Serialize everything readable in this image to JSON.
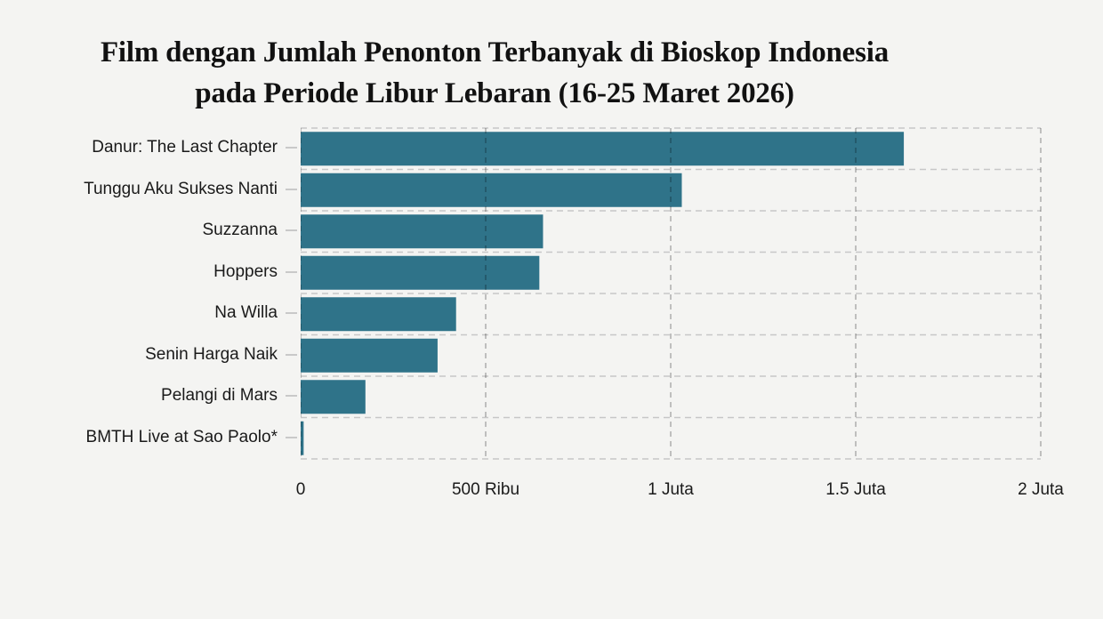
{
  "title": {
    "line1": "Film dengan Jumlah Penonton Terbanyak di Bioskop Indonesia",
    "line2": "pada Periode Libur Lebaran (16-25 Maret 2026)"
  },
  "chart_data": {
    "type": "bar",
    "orientation": "horizontal",
    "title": "Film dengan Jumlah Penonton Terbanyak di Bioskop Indonesia pada Periode Libur Lebaran (16-25 Maret 2026)",
    "categories": [
      "Danur: The Last Chapter",
      "Tunggu Aku Sukses Nanti",
      "Suzzanna",
      "Hoppers",
      "Na Willa",
      "Senin Harga Naik",
      "Pelangi di Mars",
      "BMTH Live at Sao Paolo*"
    ],
    "values": [
      1630000,
      1030000,
      655000,
      645000,
      420000,
      370000,
      175000,
      8000
    ],
    "xlabel": "",
    "ylabel": "",
    "xlim": [
      0,
      2000000
    ],
    "x_ticks": [
      {
        "value": 0,
        "label": "0"
      },
      {
        "value": 500000,
        "label": "500 Ribu"
      },
      {
        "value": 1000000,
        "label": "1 Juta"
      },
      {
        "value": 1500000,
        "label": "1.5 Juta"
      },
      {
        "value": 2000000,
        "label": "2 Juta"
      }
    ],
    "grid": "dashed",
    "legend": "none",
    "colors": {
      "bar": "#2f7389",
      "background": "#f4f4f2",
      "row_separator": "#c7c7c7",
      "vertical_gridline": "rgba(0,0,0,0.27)",
      "tick": "#c9c9c9",
      "text": "#1a1a1a"
    }
  }
}
